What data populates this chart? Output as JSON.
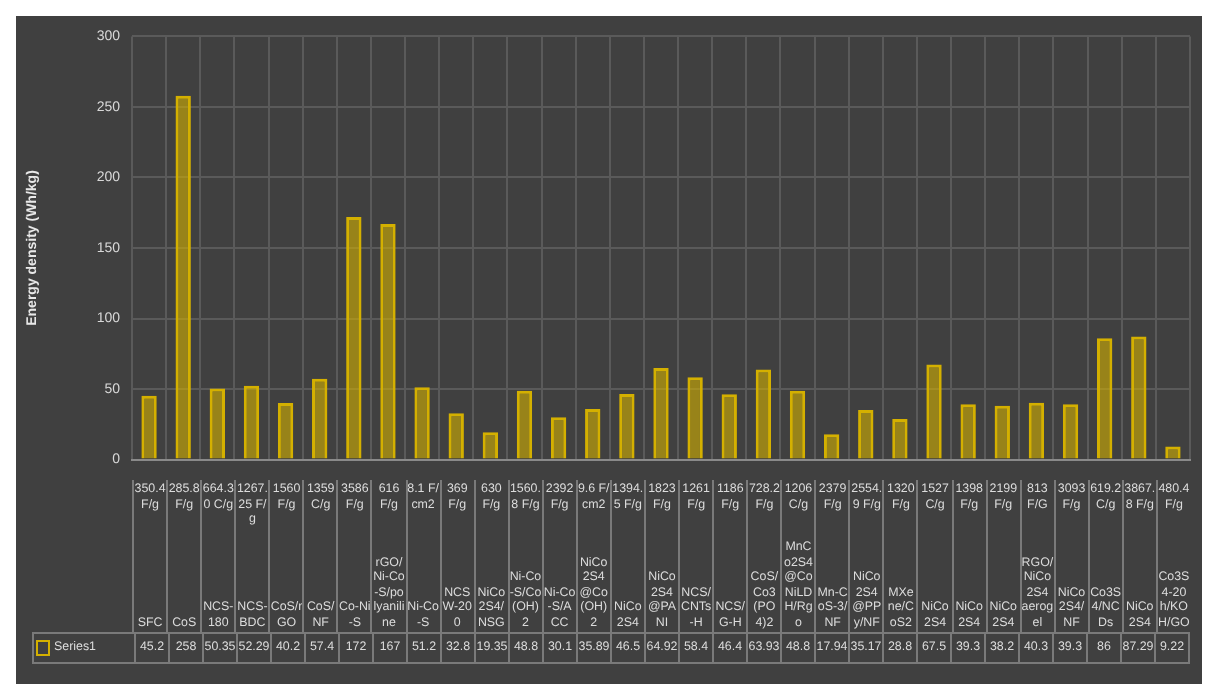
{
  "chart_data": {
    "type": "bar",
    "ylabel": "Energy density (Wh/kg)",
    "categories": [
      "350.4 F/g\nSFC",
      "285.8 F/g\nCoS",
      "664.30 C/g\nNCS-180",
      "1267.25 F/g\nNCS-BDC",
      "1560 F/g\nCoS/rGO",
      "1359 C/g\nCoS/NF",
      "3586 F/g\nCo-Ni-S",
      "616 F/g\nrGO/Ni-Co-S/polyaniline",
      "8.1 F/cm2\nNi-Co-S",
      "369 F/g\nNCSW-200",
      "630 F/g\nNiCo2S4/NSG",
      "1560.8 F/g\nNi-Co-S/Co(OH)2",
      "2392 F/g\nNi-Co-S/ACC",
      "9.6 F/cm2\nNiCo2S4@Co(OH)2",
      "1394.5 F/g\nNiCo2S4",
      "1823 F/g\nNiCo2S4@PANI",
      "1261 F/g\nNCS/CNTs-H",
      "1186 F/g\nNCS/G-H",
      "728.2 F/g\nCoS/Co3(PO4)2",
      "1206 C/g\nMnCo2S4@CoNiLDH/Rgo",
      "2379 F/g\nMn-CoS-3/NF",
      "2554.9 F/g\nNiCo2S4@PPy/NF",
      "1320 F/g\nMXene/CoS2",
      "1527 C/g\nNiCo2S4",
      "1398 F/g\nNiCo2S4",
      "2199 F/g\nNiCo2S4",
      "813 F/G\nRGO/NiCo2S4 aerogel",
      "3093 F/g\nNiCo2S4/NF",
      "619.2 C/g\nCo3S4/NCDs",
      "3867.8 F/g\nNiCo2S4",
      "480.4 F/g\nCo3S4-20h/KOH/GO"
    ],
    "series": [
      {
        "name": "Series1",
        "color": "#d4b000",
        "values": [
          45.2,
          258,
          50.35,
          52.29,
          40.2,
          57.4,
          172,
          167,
          51.2,
          32.8,
          19.35,
          48.8,
          30.1,
          35.89,
          46.5,
          64.92,
          58.4,
          46.4,
          63.93,
          48.8,
          17.94,
          35.17,
          28.8,
          67.5,
          39.3,
          38.2,
          40.3,
          39.3,
          86,
          87.29,
          9.22
        ]
      }
    ],
    "ylim": [
      0,
      300
    ],
    "yticks": [
      0,
      50,
      100,
      150,
      200,
      250,
      300
    ],
    "grid": true,
    "legend": "bottom",
    "data_labels": true
  }
}
